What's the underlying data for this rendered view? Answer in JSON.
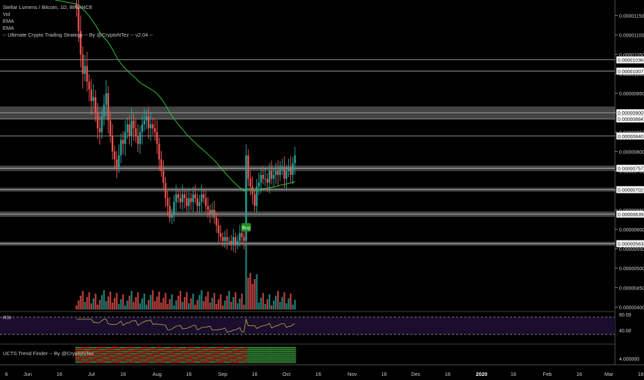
{
  "legend": {
    "symbol": "Stellar Lumens / Bitcoin, 1D, BINANCE",
    "vol": "Vol",
    "ema1": "EMA",
    "ema2": "EMA",
    "strategy": "-- Ultimate Crypto Trading Strategy -- By @CryptoNTez -- v2.04 --"
  },
  "rsi_pane": {
    "title": "RSI"
  },
  "trend_pane": {
    "title": "UCTS Trend Finder -- By @CryptoNTez"
  },
  "signal": {
    "label": "Buy",
    "color": "#1e8f1e"
  },
  "colors": {
    "background": "#000000",
    "up": "#26a69a",
    "down": "#ef5350",
    "ema": "#2ecc40",
    "rsi_line": "#c8b44a",
    "rsi_band": "#1a0d2e",
    "level_line": "#bfbfbf",
    "trend_green": "#2e7d32",
    "trend_red": "#b71c1c"
  },
  "chart_data": {
    "type": "candlestick",
    "price_scale": {
      "ylim": [
        3.9e-06,
        1.19e-05
      ],
      "tick_labels": [
        "0.00001150",
        "0.00001100",
        "0.00001050",
        "0.00001000",
        "0.00000950",
        "0.00000900",
        "0.00000850",
        "0.00000800",
        "0.00000750",
        "0.00000700",
        "0.00000650",
        "0.00000600",
        "0.00000550",
        "0.00000500",
        "0.00000450",
        "0.00000400"
      ],
      "tick_values": [
        1.15e-05,
        1.1e-05,
        1.05e-05,
        1e-05,
        9.5e-06,
        9e-06,
        8.5e-06,
        8e-06,
        7.5e-06,
        7e-06,
        6.5e-06,
        6e-06,
        5.5e-06,
        5e-06,
        4.5e-06,
        4e-06
      ]
    },
    "horizontal_levels": [
      {
        "label": "0.00001036",
        "value": 1.036e-05,
        "zone": 0
      },
      {
        "label": "0.00001007",
        "value": 1.007e-05,
        "zone": 0
      },
      {
        "label": "0.00000900",
        "value": 9e-06,
        "zone": 1.6e-07
      },
      {
        "label": "0.00000884",
        "value": 8.84e-06,
        "zone": 0
      },
      {
        "label": "0.00000840",
        "value": 8.4e-06,
        "zone": 0
      },
      {
        "label": "0.00000757",
        "value": 7.57e-06,
        "zone": 7e-08
      },
      {
        "label": "0.00000702",
        "value": 7.02e-06,
        "zone": 5e-08
      },
      {
        "label": "0.00000639",
        "value": 6.39e-06,
        "zone": 7e-08
      },
      {
        "label": "0.00000563",
        "value": 5.63e-06,
        "zone": 5e-08
      }
    ],
    "time_axis": {
      "labels": [
        "6",
        "Jun",
        "16",
        "Jul",
        "16",
        "Aug",
        "16",
        "Sep",
        "16",
        "Oct",
        "16",
        "Nov",
        "16",
        "Dec",
        "16",
        "2020",
        "16",
        "Feb",
        "16",
        "Mar",
        "16"
      ],
      "day_offsets": [
        -10,
        0,
        15,
        30,
        45,
        61,
        76,
        92,
        107,
        122,
        137,
        153,
        168,
        183,
        198,
        214,
        229,
        245,
        260,
        274,
        289
      ],
      "bold": [
        "2020"
      ]
    },
    "candles_close": [
      1.17e-05,
      1.11e-05,
      1.05e-05,
      1e-05,
      1.02e-05,
      9.8e-06,
      9.6e-06,
      9.3e-06,
      9.4e-06,
      9e-06,
      8.6e-06,
      8.5e-06,
      8.9e-06,
      9.2e-06,
      9.5e-06,
      8.8e-06,
      8.4e-06,
      8e-06,
      7.8e-06,
      7.6e-06,
      7.9e-06,
      8.3e-06,
      8.2e-06,
      8.5e-06,
      8.7e-06,
      8.4e-06,
      8.8e-06,
      8.6e-06,
      8.4e-06,
      8.2e-06,
      8.5e-06,
      8.7e-06,
      8.8e-06,
      8.9e-06,
      8.6e-06,
      8.7e-06,
      8.6e-06,
      8.5e-06,
      8.2e-06,
      7.8e-06,
      7.5e-06,
      7.2e-06,
      6.8e-06,
      6.6e-06,
      6.3e-06,
      6.4e-06,
      6.7e-06,
      6.9e-06,
      6.8e-06,
      6.7e-06,
      6.9e-06,
      6.8e-06,
      6.6e-06,
      6.8e-06,
      6.7e-06,
      6.9e-06,
      6.8e-06,
      6.6e-06,
      6.7e-06,
      6.9e-06,
      6.8e-06,
      6.6e-06,
      6.5e-06,
      6.4e-06,
      6.5e-06,
      6.3e-06,
      6.1e-06,
      5.9e-06,
      5.8e-06,
      5.7e-06,
      5.8e-06,
      5.7e-06,
      5.7e-06,
      5.6e-06,
      5.8e-06,
      5.6e-06,
      5.7e-06,
      5.9e-06,
      5.8e-06,
      5.7e-06,
      7.9e-06,
      7.3e-06,
      7.1e-06,
      6.9e-06,
      6.6e-06,
      7.1e-06,
      7.2e-06,
      7.4e-06,
      7.3e-06,
      7.3e-06,
      7.2e-06,
      7.5e-06,
      7.3e-06,
      7.4e-06,
      7.5e-06,
      7.4e-06,
      7.6e-06,
      7.6e-06,
      7.3e-06,
      7.5e-06,
      7.6e-06,
      7.4e-06,
      7.7e-06,
      7.9e-06
    ],
    "rsi": {
      "levels": [
        70,
        30
      ],
      "tick_labels": [
        "80.00",
        "40.00"
      ]
    },
    "trend_tick": "4.000000"
  }
}
